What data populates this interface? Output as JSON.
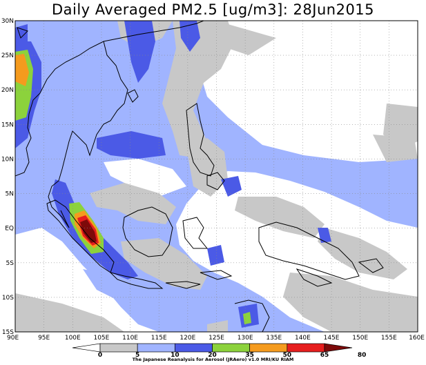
{
  "title": "Daily Averaged PM2.5 [ug/m3]: 28Jun2015",
  "lat_labels": [
    "30N",
    "25N",
    "20N",
    "15N",
    "10N",
    "5N",
    "EQ",
    "5S",
    "10S",
    "15S"
  ],
  "lon_labels": [
    "90E",
    "95E",
    "100E",
    "105E",
    "110E",
    "115E",
    "120E",
    "125E",
    "130E",
    "135E",
    "140E",
    "145E",
    "150E",
    "155E",
    "160E"
  ],
  "colorbar": {
    "tick_labels": [
      "0",
      "5",
      "10",
      "20",
      "35",
      "50",
      "65",
      "80"
    ],
    "colors": [
      "#ffffff",
      "#c8c8c8",
      "#a0b4ff",
      "#4b5ae6",
      "#8cd23c",
      "#f59b1e",
      "#e61e1e",
      "#7d0a0a"
    ]
  },
  "credit": "The Japanese Reanalysis for Aerosol (JRAero) v1.0 MRI/KU RIAM",
  "map": {
    "lon_range": [
      90,
      160
    ],
    "lat_range": [
      -15,
      30
    ],
    "grid": true
  }
}
